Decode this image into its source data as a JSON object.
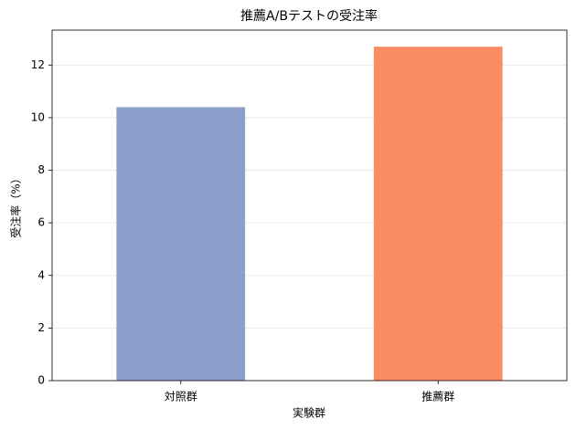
{
  "chart_data": {
    "type": "bar",
    "title": "推薦A/Bテストの受注率",
    "x_label": "実験群",
    "y_label": "受注率（%）",
    "categories": [
      "対照群",
      "推薦群"
    ],
    "values": [
      10.4,
      12.7
    ],
    "colors": [
      "#8da0cb",
      "#fc8d62"
    ],
    "ylim": [
      0,
      13.33
    ],
    "yticks": [
      0,
      2,
      4,
      6,
      8,
      10,
      12
    ],
    "grid": true
  }
}
